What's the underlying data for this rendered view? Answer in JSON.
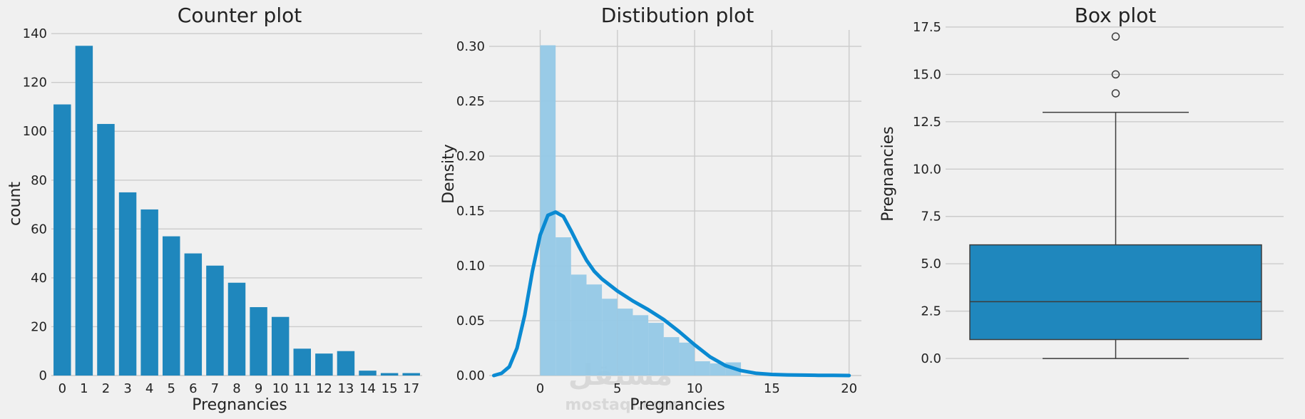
{
  "watermark": {
    "logo_text": "مستقل",
    "sub_text": "mostaql.com"
  },
  "chart_data": [
    {
      "type": "bar",
      "title": "Counter plot",
      "xlabel": "Pregnancies",
      "ylabel": "count",
      "categories": [
        "0",
        "1",
        "2",
        "3",
        "4",
        "5",
        "6",
        "7",
        "8",
        "9",
        "10",
        "11",
        "12",
        "13",
        "14",
        "15",
        "17"
      ],
      "values": [
        111,
        135,
        103,
        75,
        68,
        57,
        50,
        45,
        38,
        28,
        24,
        11,
        9,
        10,
        2,
        1,
        1
      ],
      "ylim": [
        0,
        145
      ],
      "yticks": [
        0,
        20,
        40,
        60,
        80,
        100,
        120,
        140
      ],
      "color": "#1f87bd",
      "grid": "y"
    },
    {
      "type": "area",
      "title": "Distibution plot",
      "xlabel": "Pregnancies",
      "ylabel": "Density",
      "xlim": [
        -3.3,
        20.8
      ],
      "ylim": [
        0,
        0.315
      ],
      "xticks": [
        0,
        5,
        10,
        15,
        20
      ],
      "yticks": [
        "0.00",
        "0.05",
        "0.10",
        "0.15",
        "0.20",
        "0.25",
        "0.30"
      ],
      "histogram": {
        "bin_edges": [
          0,
          1,
          2,
          3,
          4,
          5,
          6,
          7,
          8,
          9,
          10,
          11,
          12,
          13,
          14
        ],
        "densities": [
          0.301,
          0.126,
          0.092,
          0.083,
          0.07,
          0.061,
          0.055,
          0.048,
          0.035,
          0.03,
          0.013,
          0.011,
          0.012,
          0
        ],
        "color": "#93c8e6"
      },
      "kde": {
        "x": [
          -3,
          -2.5,
          -2,
          -1.5,
          -1,
          -0.5,
          0,
          0.5,
          1,
          1.5,
          2,
          2.5,
          3,
          3.5,
          4,
          5,
          6,
          7,
          8,
          9,
          10,
          11,
          12,
          13,
          14,
          15,
          16,
          17,
          18,
          19,
          20
        ],
        "y": [
          0,
          0.002,
          0.008,
          0.025,
          0.055,
          0.095,
          0.128,
          0.146,
          0.149,
          0.145,
          0.132,
          0.118,
          0.105,
          0.095,
          0.088,
          0.077,
          0.068,
          0.06,
          0.051,
          0.04,
          0.028,
          0.017,
          0.009,
          0.0045,
          0.002,
          0.001,
          0.0006,
          0.0004,
          0.0002,
          0.0001,
          0
        ],
        "color": "#0a8ad2"
      },
      "grid": "both"
    },
    {
      "type": "box",
      "title": "Box plot",
      "xlabel": "",
      "ylabel": "Pregnancies",
      "ylim": [
        -0.9,
        17.8
      ],
      "yticks": [
        "0.0",
        "2.5",
        "5.0",
        "7.5",
        "10.0",
        "12.5",
        "15.0",
        "17.5"
      ],
      "box": {
        "min": 0,
        "q1": 1,
        "median": 3,
        "q3": 6,
        "max": 13,
        "outliers": [
          14,
          15,
          17
        ]
      },
      "color": "#1f87bd",
      "grid": "y"
    }
  ]
}
